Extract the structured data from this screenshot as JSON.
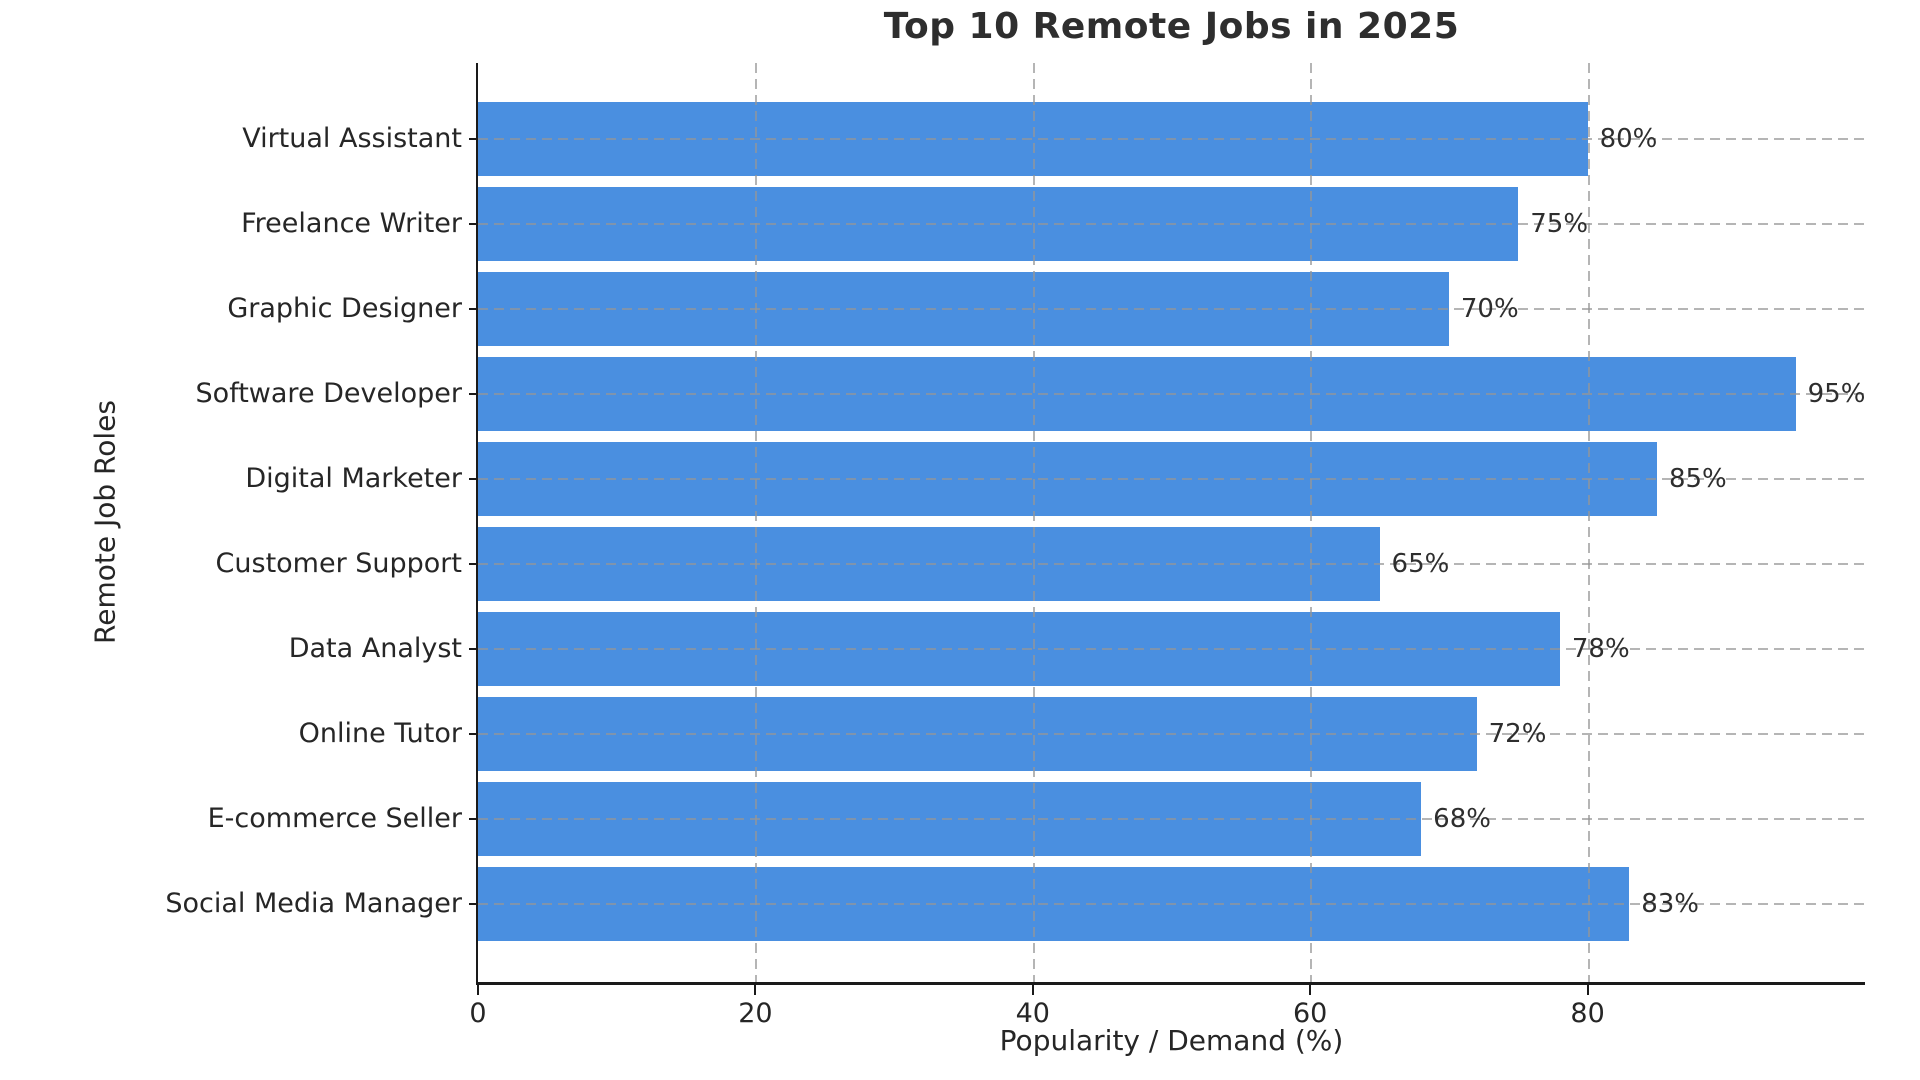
{
  "chart_data": {
    "type": "bar",
    "orientation": "horizontal",
    "title": "Top 10 Remote Jobs in 2025",
    "xlabel": "Popularity / Demand (%)",
    "ylabel": "Remote Job Roles",
    "categories": [
      "Virtual Assistant",
      "Freelance Writer",
      "Graphic Designer",
      "Software Developer",
      "Digital Marketer",
      "Customer Support",
      "Data Analyst",
      "Online Tutor",
      "E-commerce Seller",
      "Social Media Manager"
    ],
    "values": [
      80,
      75,
      70,
      95,
      85,
      65,
      78,
      72,
      68,
      83
    ],
    "value_labels": [
      "80%",
      "75%",
      "70%",
      "95%",
      "85%",
      "65%",
      "78%",
      "72%",
      "68%",
      "83%"
    ],
    "xlim": [
      0,
      100
    ],
    "xticks": [
      0,
      20,
      40,
      60,
      80
    ],
    "xtick_labels": [
      "0",
      "20",
      "40",
      "60",
      "80"
    ],
    "grid": "dashed gridlines on both axes, drawn over bars",
    "legend": "none",
    "colors": {
      "bar": "#4a8fe0",
      "grid": "#b0b0b0",
      "spine": "#1a1a1a",
      "text": "#262626",
      "background": "#ffffff"
    }
  }
}
